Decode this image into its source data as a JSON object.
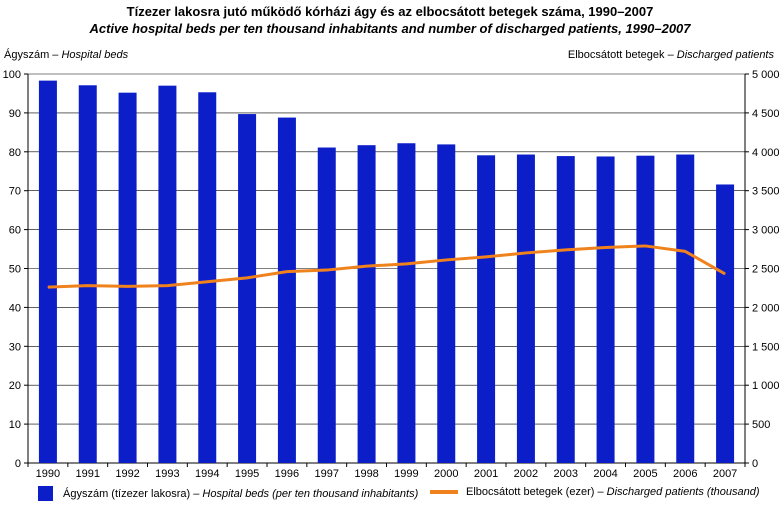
{
  "title": "Tízezer lakosra jutó működő kórházi ágy és az elbocsátott betegek száma, 1990–2007",
  "subtitle": "Active hospital beds per ten thousand inhabitants and number of discharged patients, 1990–2007",
  "colors": {
    "bars": "#0b1ec8",
    "line": "#f0821e",
    "grid": "#000000"
  },
  "chart_data": {
    "type": "bar",
    "title": "Tízezer lakosra jutó működő kórházi ágy és az elbocsátott betegek száma, 1990–2007",
    "subtitle": "Active hospital beds per ten thousand inhabitants and number of discharged patients, 1990–2007",
    "ylabel_left": {
      "hu": "Ágyszám",
      "en": "Hospital beds"
    },
    "ylabel_right": {
      "hu": "Elbocsátott betegek",
      "en": "Discharged patients"
    },
    "categories": [
      "1990",
      "1991",
      "1992",
      "1993",
      "1994",
      "1995",
      "1996",
      "1997",
      "1998",
      "1999",
      "2000",
      "2001",
      "2002",
      "2003",
      "2004",
      "2005",
      "2006",
      "2007"
    ],
    "ylim_left": [
      0,
      100
    ],
    "ylim_right": [
      0,
      5000
    ],
    "yticks_left": [
      "0",
      "10",
      "20",
      "30",
      "40",
      "50",
      "60",
      "70",
      "80",
      "90",
      "100"
    ],
    "yticks_right": [
      "0",
      "500",
      "1 000",
      "1 500",
      "2 000",
      "2 500",
      "3 000",
      "3 500",
      "4 000",
      "4 500",
      "5 000"
    ],
    "grid": true,
    "legend_position": "bottom",
    "series": [
      {
        "name_hu": "Ágyszám (tízezer lakosra)",
        "name_en": "Hospital beds (per ten thousand inhabitants)",
        "type": "bar",
        "axis": "left",
        "values": [
          98.3,
          97.1,
          95.2,
          97.0,
          95.3,
          89.7,
          88.8,
          81.1,
          81.7,
          82.2,
          81.9,
          79.1,
          79.3,
          78.9,
          78.8,
          79.0,
          79.3,
          71.6
        ]
      },
      {
        "name_hu": "Elbocsátott betegek (ezer)",
        "name_en": "Discharged patients (thousand)",
        "type": "line",
        "axis": "right",
        "values": [
          2260,
          2280,
          2270,
          2280,
          2330,
          2380,
          2460,
          2480,
          2530,
          2560,
          2610,
          2650,
          2700,
          2740,
          2770,
          2790,
          2720,
          2430
        ]
      }
    ]
  }
}
